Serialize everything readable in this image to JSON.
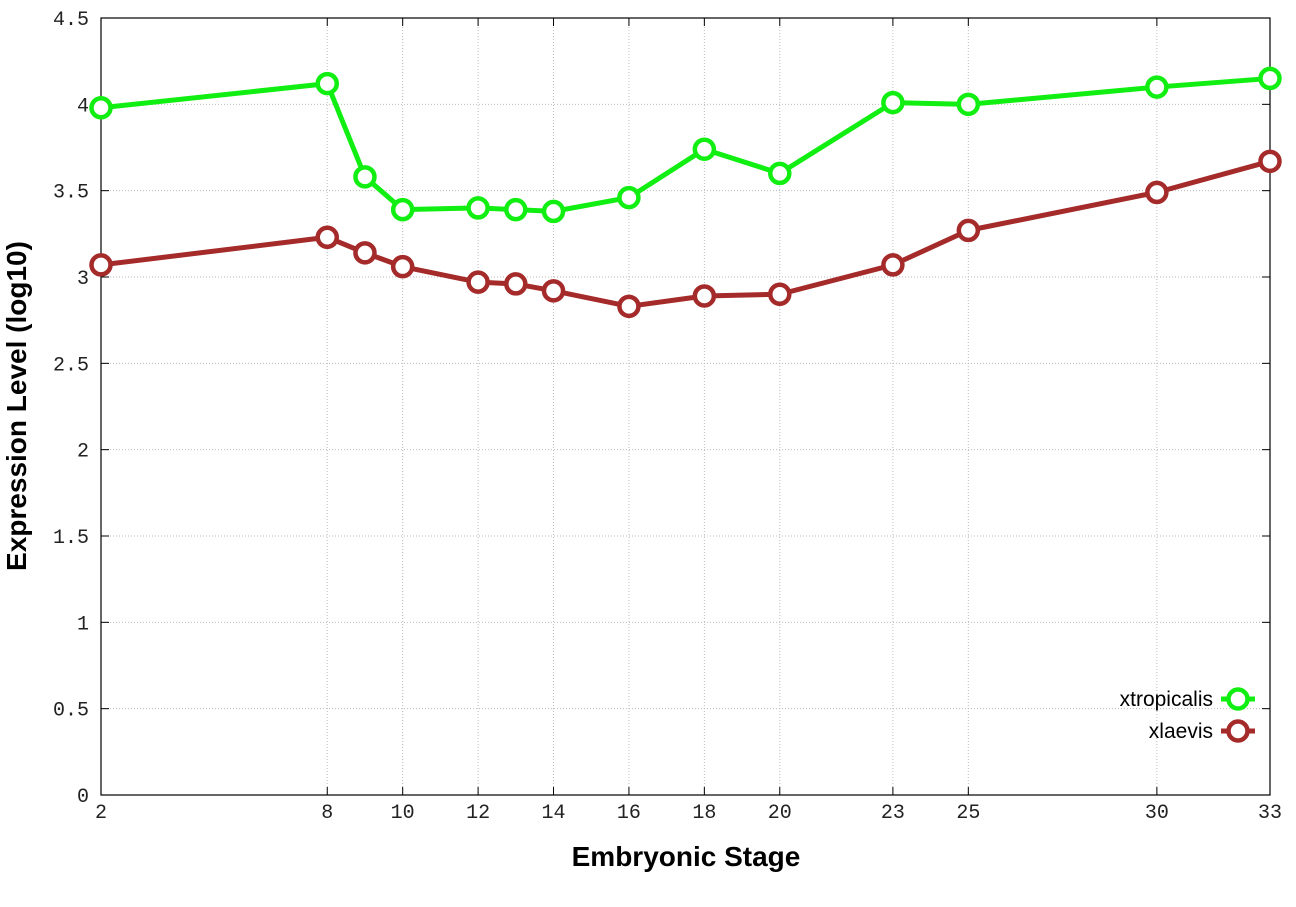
{
  "chart_data": {
    "type": "line",
    "xlabel": "Embryonic Stage",
    "ylabel": "Expression Level (log10)",
    "x": [
      2,
      8,
      9,
      10,
      12,
      13,
      14,
      16,
      18,
      20,
      23,
      25,
      30,
      33
    ],
    "series": [
      {
        "name": "xtropicalis",
        "color": "#11ee11",
        "values": [
          3.98,
          4.12,
          3.58,
          3.39,
          3.4,
          3.39,
          3.38,
          3.46,
          3.74,
          3.6,
          4.01,
          4.0,
          4.1,
          4.15
        ]
      },
      {
        "name": "xlaevis",
        "color": "#a52a2a",
        "values": [
          3.07,
          3.23,
          3.14,
          3.06,
          2.97,
          2.96,
          2.92,
          2.83,
          2.89,
          2.9,
          3.07,
          3.27,
          3.49,
          3.67
        ]
      }
    ],
    "xlim": [
      2,
      33
    ],
    "xticks": [
      2,
      8,
      10,
      12,
      14,
      16,
      18,
      20,
      23,
      25,
      30,
      33
    ],
    "ylim": [
      0,
      4.5
    ],
    "yticks": [
      0,
      0.5,
      1,
      1.5,
      2,
      2.5,
      3,
      3.5,
      4,
      4.5
    ],
    "grid": true,
    "legend": "lower right"
  }
}
